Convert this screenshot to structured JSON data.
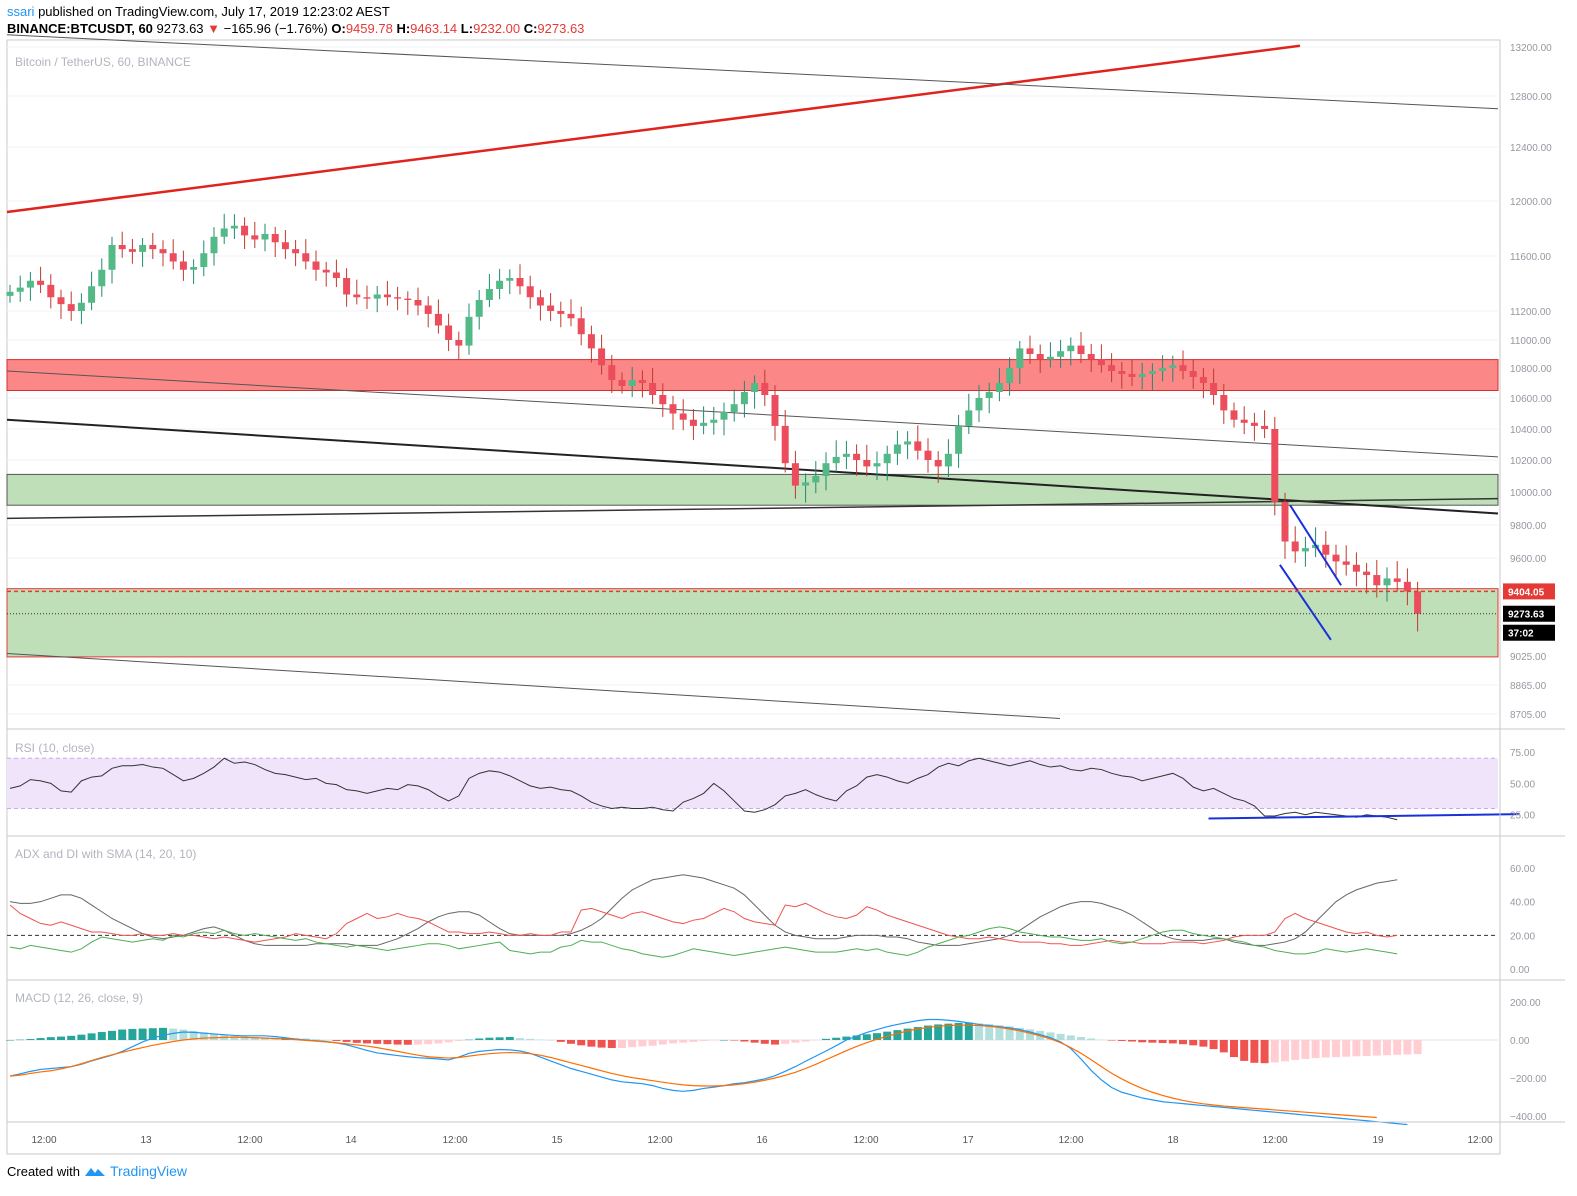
{
  "header": {
    "publisher_user": "ssari",
    "publisher_text": "published on TradingView.com, July 17, 2019 12:23:02 AEST",
    "symbol": "BINANCE:BTCUSDT, 60",
    "last_price": "9273.63",
    "change_arrow": "▼",
    "change": "−165.96 (−1.76%)",
    "o_label": "O:",
    "o_value": "9459.78",
    "h_label": "H:",
    "h_value": "9463.14",
    "l_label": "L:",
    "l_value": "9232.00",
    "c_label": "C:",
    "c_value": "9273.63"
  },
  "footer": {
    "created_with": "Created with",
    "brand": "TradingView"
  },
  "colors": {
    "up": "#26a69a",
    "down": "#ef5350",
    "up_fill": "#53b987",
    "down_fill": "#eb4d5c",
    "resistance_zone": "#fb7a7a",
    "support_zone": "#b7dbb0",
    "trend_red": "#e0231c",
    "wedge_blue": "#1a30d8",
    "rsi_band": "#f0e4fb",
    "adx_gray": "#666666",
    "plus_di": "#ef5350",
    "minus_di": "#4caf50",
    "macd_blue": "#2196f3",
    "signal_orange": "#ff6d00"
  },
  "chart_data": [
    {
      "type": "candlestick",
      "title": "Bitcoin / TetherUS, 60, BINANCE",
      "y_ticks": [
        13200,
        12800,
        12400,
        12000,
        11600,
        11200,
        11000,
        10800,
        10600,
        10400,
        10200,
        10000,
        9800,
        9600,
        9025,
        8865,
        8705
      ],
      "y_tick_labels": [
        "13200.00",
        "12800.00",
        "12400.00",
        "12000.00",
        "11600.00",
        "11200.00",
        "11000.00",
        "10800.00",
        "10600.00",
        "10400.00",
        "10200.00",
        "10000.00",
        "9800.00",
        "9600.00",
        "9025.00",
        "8865.00",
        "8705.00"
      ],
      "price_tags": {
        "level": "9404.05",
        "last": "9273.63",
        "countdown": "37:02"
      },
      "x_tick_labels": [
        "12:00",
        "13",
        "12:00",
        "14",
        "12:00",
        "15",
        "12:00",
        "16",
        "12:00",
        "17",
        "12:00",
        "18",
        "12:00",
        "19",
        "12:00"
      ],
      "zones": [
        {
          "name": "resistance",
          "from": 10650,
          "to": 10860
        },
        {
          "name": "support-upper",
          "from": 9920,
          "to": 10110
        },
        {
          "name": "support-lower",
          "from": 9020,
          "to": 9420
        }
      ],
      "closes": [
        11340,
        11370,
        11420,
        11390,
        11300,
        11250,
        11200,
        11260,
        11380,
        11500,
        11680,
        11650,
        11630,
        11680,
        11650,
        11620,
        11560,
        11500,
        11520,
        11620,
        11740,
        11800,
        11820,
        11750,
        11720,
        11760,
        11700,
        11650,
        11620,
        11560,
        11500,
        11480,
        11440,
        11320,
        11300,
        11290,
        11320,
        11300,
        11290,
        11280,
        11240,
        11180,
        11100,
        11000,
        10960,
        11160,
        11280,
        11360,
        11420,
        11440,
        11380,
        11300,
        11240,
        11200,
        11180,
        11150,
        11040,
        10940,
        10820,
        10720,
        10680,
        10720,
        10700,
        10620,
        10560,
        10500,
        10460,
        10420,
        10440,
        10460,
        10510,
        10560,
        10640,
        10700,
        10620,
        10420,
        10180,
        10040,
        10060,
        10100,
        10180,
        10220,
        10240,
        10200,
        10160,
        10180,
        10240,
        10300,
        10320,
        10260,
        10200,
        10160,
        10240,
        10420,
        10520,
        10600,
        10640,
        10700,
        10800,
        10940,
        10900,
        10860,
        10880,
        10920,
        10960,
        10900,
        10860,
        10820,
        10780,
        10760,
        10740,
        10760,
        10780,
        10800,
        10820,
        10780,
        10740,
        10700,
        10620,
        10520,
        10460,
        10440,
        10420,
        10400,
        9940,
        9700,
        9640,
        9660,
        9680,
        9620,
        9580,
        9560,
        9520,
        9500,
        9440,
        9480,
        9460,
        9404,
        9273
      ],
      "upper_wedge": [
        [
          125.5,
          9920
        ],
        [
          130.5,
          9440
        ]
      ],
      "lower_wedge": [
        [
          124.5,
          9560
        ],
        [
          129.5,
          9120
        ]
      ]
    },
    {
      "type": "line",
      "title": "RSI (10, close)",
      "y_ticks": [
        75,
        50,
        25
      ],
      "y_tick_labels": [
        "75.00",
        "50.00",
        "25.00"
      ],
      "band": [
        30,
        70
      ],
      "values": [
        46,
        48,
        53,
        52,
        50,
        44,
        43,
        52,
        55,
        56,
        62,
        64,
        64,
        65,
        63,
        62,
        57,
        52,
        54,
        58,
        63,
        70,
        66,
        67,
        65,
        61,
        58,
        57,
        55,
        53,
        54,
        50,
        49,
        45,
        44,
        42,
        44,
        46,
        45,
        49,
        48,
        45,
        40,
        36,
        40,
        54,
        58,
        60,
        59,
        56,
        52,
        48,
        46,
        47,
        45,
        44,
        40,
        35,
        32,
        30,
        31,
        30,
        30,
        31,
        29,
        28,
        35,
        38,
        42,
        50,
        44,
        36,
        28,
        27,
        29,
        33,
        40,
        42,
        45,
        41,
        38,
        36,
        44,
        48,
        55,
        57,
        55,
        52,
        50,
        54,
        57,
        63,
        66,
        64,
        68,
        70,
        68,
        66,
        64,
        66,
        68,
        65,
        63,
        64,
        61,
        60,
        62,
        61,
        58,
        56,
        55,
        52,
        54,
        56,
        58,
        54,
        47,
        44,
        46,
        42,
        38,
        36,
        32,
        24,
        24,
        26,
        27,
        25,
        27,
        26,
        25,
        24,
        23,
        25,
        24,
        23,
        21
      ],
      "trendline": [
        [
          117.5,
          22
        ],
        [
          148,
          25.5
        ]
      ]
    },
    {
      "type": "line",
      "title": "ADX and DI with SMA (14, 20, 10)",
      "y_ticks": [
        60,
        40,
        20,
        0
      ],
      "y_tick_labels": [
        "60.00",
        "40.00",
        "20.00",
        "0.00"
      ],
      "reference_line": 20,
      "series": [
        {
          "name": "ADX",
          "values": [
            40,
            39,
            39,
            40,
            42,
            44,
            44,
            42,
            38,
            34,
            30,
            27,
            24,
            21,
            19,
            18,
            19,
            20,
            22,
            24,
            25,
            23,
            20,
            17,
            15,
            14,
            14,
            14,
            14,
            14,
            15,
            15,
            15,
            15,
            14,
            14,
            14,
            16,
            18,
            21,
            24,
            28,
            31,
            33,
            34,
            34,
            32,
            28,
            24,
            21,
            20,
            20,
            20,
            20,
            20,
            21,
            23,
            26,
            30,
            36,
            42,
            47,
            50,
            53,
            54,
            55,
            56,
            55,
            54,
            52,
            50,
            48,
            44,
            38,
            32,
            26,
            22,
            20,
            19,
            18,
            18,
            18,
            19,
            20,
            20,
            20,
            19,
            19,
            18,
            16,
            15,
            14,
            14,
            14,
            15,
            16,
            17,
            18,
            20,
            23,
            27,
            31,
            34,
            37,
            39,
            40,
            40,
            39,
            37,
            35,
            32,
            28,
            24,
            20,
            18,
            17,
            17,
            17,
            18,
            18,
            16,
            15,
            14,
            14,
            15,
            16,
            18,
            22,
            28,
            34,
            40,
            44,
            47,
            49,
            51,
            52,
            53
          ]
        },
        {
          "name": "+DI",
          "values": [
            38,
            33,
            30,
            27,
            26,
            28,
            26,
            24,
            22,
            22,
            21,
            20,
            20,
            21,
            20,
            20,
            21,
            20,
            20,
            19,
            18,
            19,
            18,
            17,
            16,
            17,
            18,
            19,
            21,
            20,
            19,
            18,
            21,
            27,
            30,
            33,
            30,
            31,
            33,
            31,
            30,
            28,
            25,
            22,
            22,
            21,
            21,
            22,
            21,
            20,
            20,
            21,
            20,
            20,
            22,
            22,
            35,
            36,
            34,
            32,
            30,
            33,
            34,
            32,
            30,
            28,
            27,
            29,
            30,
            33,
            36,
            34,
            30,
            28,
            27,
            26,
            38,
            37,
            39,
            36,
            33,
            31,
            30,
            32,
            37,
            35,
            32,
            30,
            28,
            26,
            24,
            22,
            20,
            19,
            18,
            18,
            19,
            18,
            17,
            16,
            16,
            16,
            15,
            15,
            14,
            14,
            15,
            16,
            17,
            16,
            16,
            15,
            15,
            15,
            16,
            16,
            16,
            15,
            16,
            17,
            19,
            20,
            20,
            20,
            22,
            30,
            33,
            30,
            28,
            26,
            24,
            22,
            21,
            22,
            20,
            19,
            20
          ]
        },
        {
          "name": "-DI",
          "values": [
            13,
            12,
            14,
            13,
            12,
            11,
            10,
            12,
            16,
            19,
            18,
            17,
            16,
            17,
            18,
            17,
            20,
            19,
            21,
            22,
            21,
            23,
            21,
            20,
            21,
            20,
            19,
            18,
            17,
            18,
            16,
            15,
            14,
            13,
            14,
            13,
            12,
            11,
            12,
            13,
            14,
            15,
            15,
            14,
            12,
            13,
            14,
            15,
            16,
            11,
            10,
            9,
            10,
            10,
            13,
            14,
            17,
            16,
            16,
            14,
            12,
            11,
            9,
            8,
            7,
            8,
            10,
            12,
            11,
            10,
            9,
            8,
            9,
            10,
            11,
            12,
            13,
            12,
            11,
            10,
            10,
            10,
            11,
            12,
            11,
            12,
            10,
            9,
            8,
            10,
            13,
            15,
            17,
            19,
            20,
            22,
            24,
            25,
            24,
            22,
            21,
            20,
            19,
            19,
            18,
            17,
            17,
            18,
            16,
            15,
            16,
            18,
            20,
            22,
            23,
            23,
            21,
            20,
            19,
            18,
            17,
            16,
            14,
            13,
            11,
            10,
            9,
            9,
            10,
            12,
            11,
            10,
            11,
            12,
            11,
            10,
            9
          ]
        }
      ]
    },
    {
      "type": "bar+line",
      "title": "MACD (12, 26, close, 9)",
      "y_ticks": [
        200,
        0,
        -200,
        -400
      ],
      "y_tick_labels": [
        "200.00",
        "0.00",
        "−200.00",
        "−400.00"
      ],
      "histogram": [
        0,
        2,
        5,
        10,
        15,
        18,
        22,
        28,
        35,
        42,
        48,
        55,
        58,
        60,
        62,
        64,
        60,
        55,
        48,
        40,
        32,
        26,
        20,
        18,
        16,
        14,
        12,
        12,
        10,
        8,
        4,
        0,
        -5,
        -10,
        -15,
        -18,
        -20,
        -22,
        -24,
        -25,
        -24,
        -22,
        -18,
        -12,
        -5,
        2,
        8,
        12,
        14,
        16,
        10,
        6,
        2,
        0,
        -10,
        -20,
        -28,
        -35,
        -40,
        -42,
        -42,
        -38,
        -34,
        -30,
        -24,
        -18,
        -14,
        -10,
        -5,
        -2,
        0,
        -2,
        -8,
        -14,
        -20,
        -24,
        -20,
        -14,
        -8,
        -2,
        6,
        12,
        18,
        24,
        30,
        36,
        44,
        52,
        60,
        68,
        76,
        82,
        86,
        90,
        92,
        88,
        84,
        78,
        72,
        64,
        56,
        48,
        40,
        32,
        24,
        16,
        8,
        2,
        -2,
        -5,
        -8,
        -12,
        -14,
        -16,
        -18,
        -22,
        -28,
        -35,
        -48,
        -65,
        -90,
        -110,
        -120,
        -122,
        -118,
        -112,
        -105,
        -100,
        -95,
        -92,
        -90,
        -88,
        -86,
        -84,
        -82,
        -80,
        -78,
        -76,
        -74
      ],
      "macd": [
        -190,
        -178,
        -165,
        -155,
        -150,
        -145,
        -140,
        -128,
        -110,
        -95,
        -80,
        -60,
        -35,
        -10,
        10,
        25,
        35,
        42,
        40,
        36,
        32,
        28,
        24,
        22,
        22,
        22,
        18,
        12,
        5,
        0,
        -4,
        -8,
        -15,
        -25,
        -40,
        -55,
        -68,
        -75,
        -82,
        -88,
        -93,
        -96,
        -100,
        -105,
        -90,
        -70,
        -60,
        -55,
        -50,
        -52,
        -58,
        -70,
        -90,
        -110,
        -130,
        -150,
        -165,
        -180,
        -195,
        -210,
        -220,
        -225,
        -230,
        -240,
        -255,
        -265,
        -270,
        -265,
        -255,
        -248,
        -240,
        -230,
        -225,
        -215,
        -205,
        -188,
        -165,
        -140,
        -112,
        -85,
        -58,
        -30,
        0,
        20,
        40,
        55,
        70,
        82,
        92,
        102,
        108,
        108,
        104,
        98,
        90,
        82,
        76,
        70,
        64,
        55,
        42,
        28,
        12,
        -10,
        -45,
        -100,
        -160,
        -210,
        -250,
        -275,
        -290,
        -305,
        -315,
        -325,
        -330,
        -335,
        -340,
        -345,
        -350,
        -355,
        -360,
        -365,
        -370,
        -375,
        -380,
        -385,
        -390,
        -395,
        -400,
        -405,
        -410,
        -415,
        -420,
        -425,
        -430,
        -435,
        -440,
        -445
      ],
      "signal": [
        -190,
        -185,
        -176,
        -168,
        -162,
        -152,
        -140,
        -125,
        -108,
        -92,
        -78,
        -65,
        -52,
        -40,
        -28,
        -18,
        -8,
        0,
        6,
        10,
        12,
        14,
        15,
        14,
        12,
        10,
        8,
        6,
        2,
        -2,
        -6,
        -10,
        -15,
        -20,
        -26,
        -32,
        -40,
        -50,
        -60,
        -70,
        -80,
        -88,
        -92,
        -95,
        -92,
        -85,
        -78,
        -72,
        -68,
        -66,
        -68,
        -72,
        -80,
        -92,
        -106,
        -120,
        -134,
        -148,
        -162,
        -176,
        -188,
        -198,
        -206,
        -214,
        -222,
        -230,
        -236,
        -240,
        -242,
        -242,
        -240,
        -236,
        -230,
        -222,
        -212,
        -200,
        -186,
        -170,
        -150,
        -128,
        -104,
        -80,
        -56,
        -34,
        -14,
        4,
        20,
        34,
        48,
        58,
        66,
        72,
        76,
        78,
        78,
        76,
        72,
        66,
        58,
        48,
        36,
        22,
        6,
        -14,
        -40,
        -70,
        -104,
        -140,
        -175,
        -205,
        -232,
        -255,
        -275,
        -292,
        -306,
        -318,
        -328,
        -336,
        -342,
        -348,
        -352,
        -356,
        -360,
        -364,
        -368,
        -372,
        -376,
        -380,
        -384,
        -388,
        -392,
        -396,
        -400,
        -404,
        -408
      ]
    }
  ],
  "pane_titles": {
    "price": "Bitcoin / TetherUS, 60, BINANCE",
    "rsi": "RSI (10, close)",
    "adx": "ADX and DI with SMA (14, 20, 10)",
    "macd": "MACD (12, 26, close, 9)"
  }
}
